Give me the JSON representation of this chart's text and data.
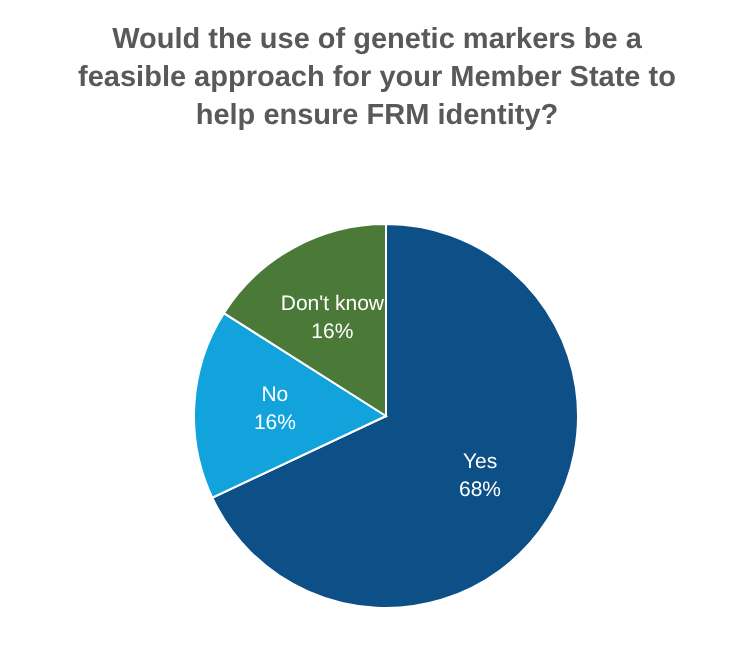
{
  "chart_data": {
    "type": "pie",
    "title": "Would the use of genetic markers be a feasible approach for your Member State to help ensure FRM identity?",
    "categories": [
      "Yes",
      "No",
      "Don't know"
    ],
    "values": [
      68,
      16,
      16
    ],
    "colors": [
      "#0d4f87",
      "#12a3dc",
      "#4b7a38"
    ],
    "value_labels": [
      "68%",
      "16%",
      "16%"
    ],
    "legend": false
  }
}
